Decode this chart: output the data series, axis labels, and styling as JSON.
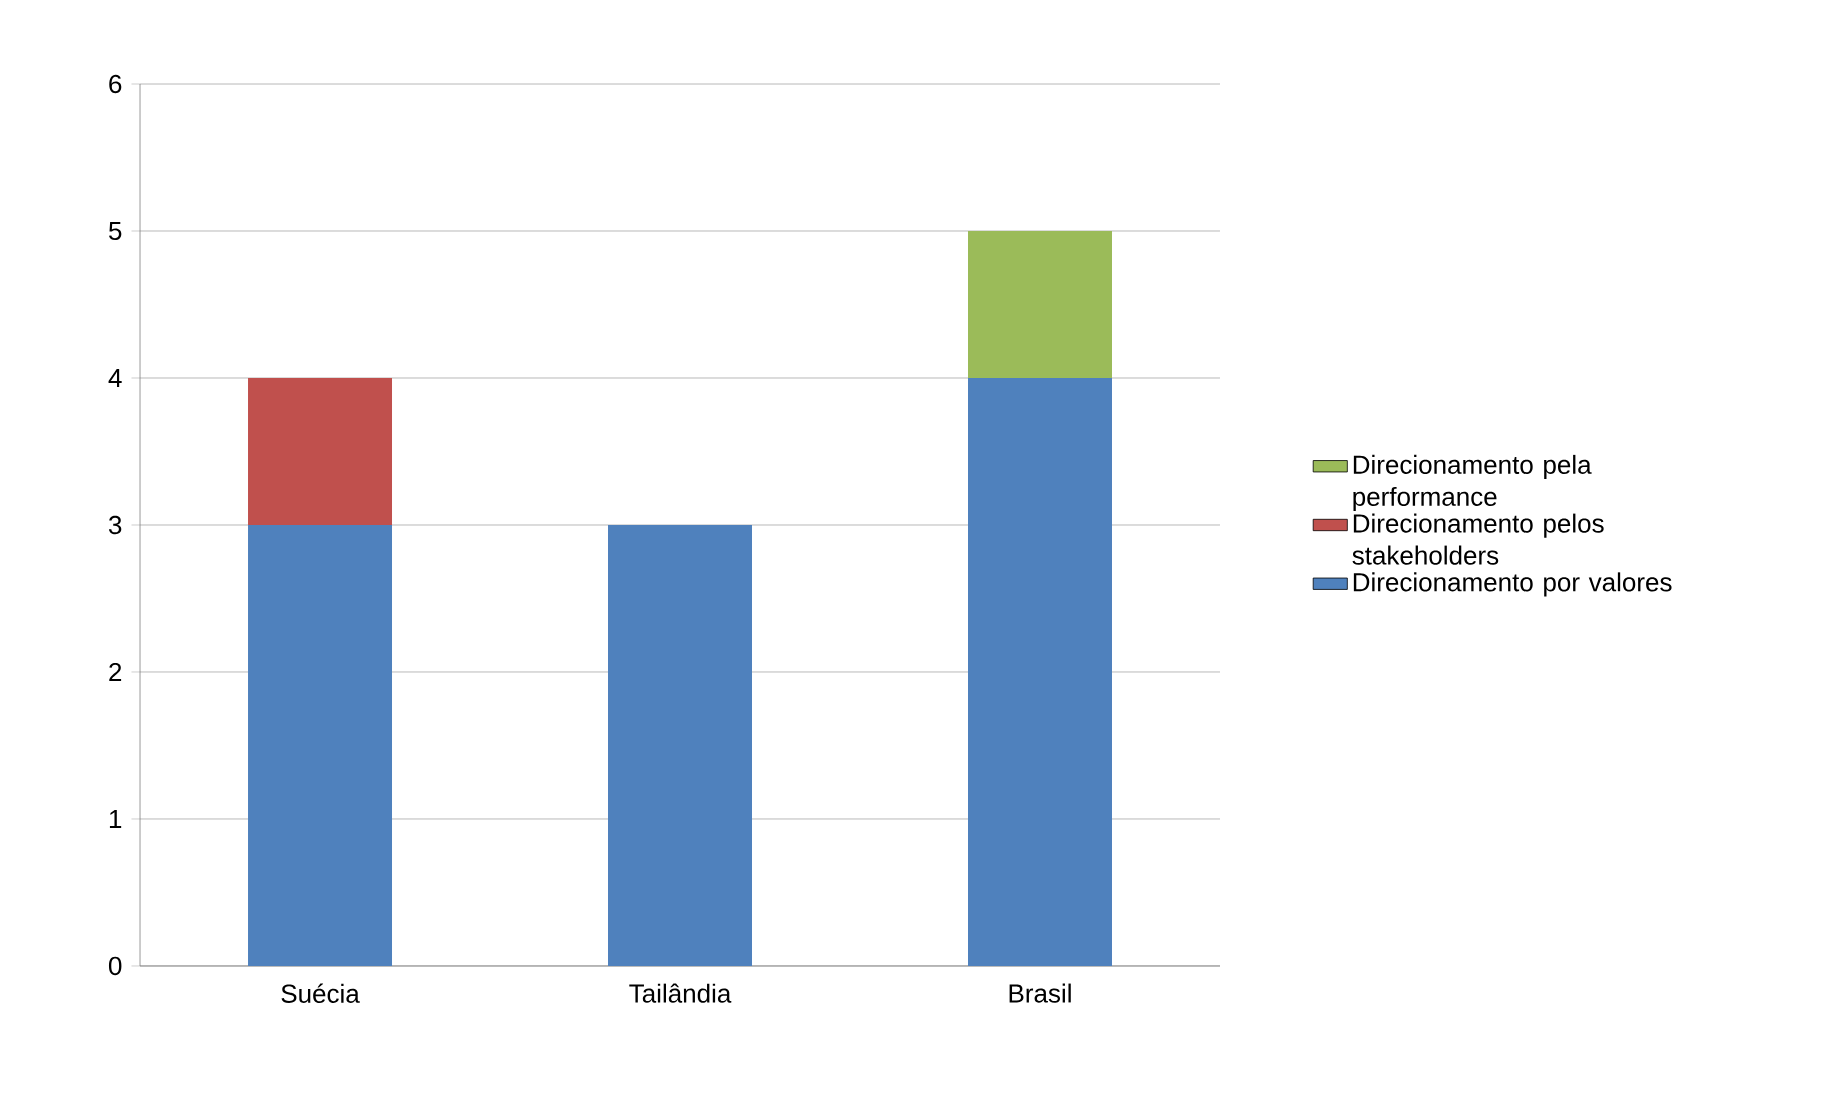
{
  "chart_data": {
    "type": "bar",
    "stacked": true,
    "categories": [
      "Suécia",
      "Tailândia",
      "Brasil"
    ],
    "series": [
      {
        "name": "Direcionamento por valores",
        "color": "#4f81bd",
        "values": [
          3,
          3,
          4
        ]
      },
      {
        "name": "Direcionamento pelos stakeholders",
        "color": "#c0504d",
        "values": [
          1,
          null,
          null
        ]
      },
      {
        "name": "Direcionamento pela performance",
        "color": "#9bbb59",
        "values": [
          null,
          null,
          1
        ]
      }
    ],
    "ylim": [
      0,
      6
    ],
    "yticks": [
      0,
      1,
      2,
      3,
      4,
      5,
      6
    ],
    "grid": "y",
    "legend": "right"
  }
}
